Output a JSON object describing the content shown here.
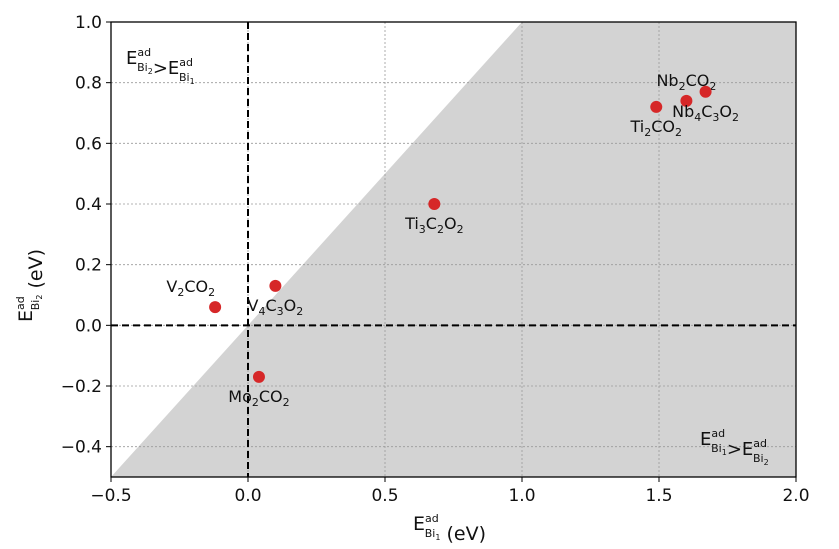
{
  "chart_data": {
    "type": "scatter",
    "xlim": [
      -0.5,
      2.0
    ],
    "ylim": [
      -0.5,
      1.0
    ],
    "xticks": [
      -0.5,
      0.0,
      0.5,
      1.0,
      1.5,
      2.0
    ],
    "yticks": [
      -0.4,
      -0.2,
      0.0,
      0.2,
      0.4,
      0.6,
      0.8,
      1.0
    ],
    "xtick_labels": [
      "−0.5",
      "0.0",
      "0.5",
      "1.0",
      "1.5",
      "2.0"
    ],
    "ytick_labels": [
      "−0.4",
      "−0.2",
      "0.0",
      "0.2",
      "0.4",
      "0.6",
      "0.8",
      "1.0"
    ],
    "grid": true,
    "shaded_region": "below y = x",
    "shade_color": "#d3d3d3",
    "point_color": "#d62728",
    "xlabel": {
      "base": "E",
      "sup": "ad",
      "sub_main": "Bi",
      "sub_sub": "1",
      "unit": "(eV)"
    },
    "ylabel": {
      "base": "E",
      "sup": "ad",
      "sub_main": "Bi",
      "sub_sub": "2",
      "unit": "(eV)"
    },
    "region_top_left": {
      "left": {
        "base": "E",
        "sup": "ad",
        "sub_main": "Bi",
        "sub_sub": "2"
      },
      "op": ">",
      "right": {
        "base": "E",
        "sup": "ad",
        "sub_main": "Bi",
        "sub_sub": "1"
      }
    },
    "region_bottom_right": {
      "left": {
        "base": "E",
        "sup": "ad",
        "sub_main": "Bi",
        "sub_sub": "1"
      },
      "op": ">",
      "right": {
        "base": "E",
        "sup": "ad",
        "sub_main": "Bi",
        "sub_sub": "2"
      }
    },
    "points": [
      {
        "name": "V2CO2",
        "x": -0.12,
        "y": 0.06,
        "label": [
          [
            "V",
            ""
          ],
          [
            "2",
            "s"
          ],
          [
            "CO",
            ""
          ],
          [
            "2",
            "s"
          ]
        ],
        "anchor": "left-above"
      },
      {
        "name": "V4C3O2",
        "x": 0.1,
        "y": 0.13,
        "label": [
          [
            "V",
            ""
          ],
          [
            "4",
            "s"
          ],
          [
            "C",
            ""
          ],
          [
            "3",
            "s"
          ],
          [
            "O",
            ""
          ],
          [
            "2",
            "s"
          ]
        ],
        "anchor": "below-center"
      },
      {
        "name": "Mo2CO2",
        "x": 0.04,
        "y": -0.17,
        "label": [
          [
            "Mo",
            ""
          ],
          [
            "2",
            "s"
          ],
          [
            "CO",
            ""
          ],
          [
            "2",
            "s"
          ]
        ],
        "anchor": "below-center"
      },
      {
        "name": "Ti3C2O2",
        "x": 0.68,
        "y": 0.4,
        "label": [
          [
            "Ti",
            ""
          ],
          [
            "3",
            "s"
          ],
          [
            "C",
            ""
          ],
          [
            "2",
            "s"
          ],
          [
            "O",
            ""
          ],
          [
            "2",
            "s"
          ]
        ],
        "anchor": "below-center"
      },
      {
        "name": "Ti2CO2",
        "x": 1.49,
        "y": 0.72,
        "label": [
          [
            "Ti",
            ""
          ],
          [
            "2",
            "s"
          ],
          [
            "CO",
            ""
          ],
          [
            "2",
            "s"
          ]
        ],
        "anchor": "below-center"
      },
      {
        "name": "Nb2CO2",
        "x": 1.6,
        "y": 0.74,
        "label": [
          [
            "Nb",
            ""
          ],
          [
            "2",
            "s"
          ],
          [
            "CO",
            ""
          ],
          [
            "2",
            "s"
          ]
        ],
        "anchor": "above-center"
      },
      {
        "name": "Nb4C3O2",
        "x": 1.67,
        "y": 0.77,
        "label": [
          [
            "Nb",
            ""
          ],
          [
            "4",
            "s"
          ],
          [
            "C",
            ""
          ],
          [
            "3",
            "s"
          ],
          [
            "O",
            ""
          ],
          [
            "2",
            "s"
          ]
        ],
        "anchor": "below-center"
      }
    ]
  }
}
